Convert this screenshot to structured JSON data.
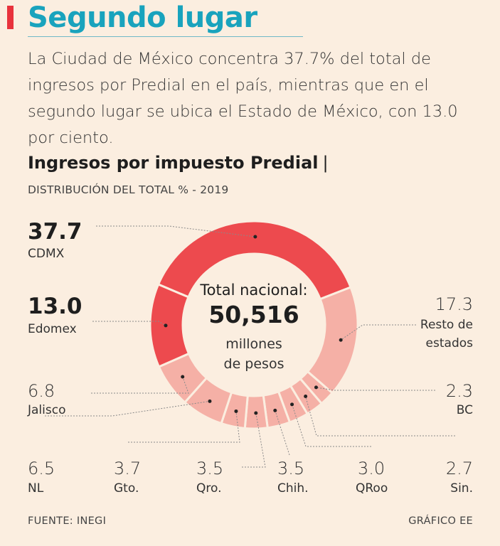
{
  "header": {
    "title": "Segundo lugar",
    "summary": "La Ciudad de México concentra 37.7% del total de ingresos por Predial en el país, mientras que en el segundo lugar se ubica el Estado de México, con 13.0 por ciento."
  },
  "chart_data": {
    "type": "pie",
    "title": "Ingresos por impuesto Predial",
    "title_separator": "|",
    "subtitle": "DISTRIBUCIÓN DEL TOTAL % - 2019",
    "center": {
      "line1": "Total nacional:",
      "value": "50,516",
      "line2": "millones",
      "line3": "de pesos"
    },
    "slices": [
      {
        "label": "CDMX",
        "value": 37.7,
        "value_text": "37.7",
        "color": "#ed4a4e"
      },
      {
        "label": "Resto de estados",
        "value": 17.3,
        "value_text": "17.3",
        "label_line1": "Resto de",
        "label_line2": "estados",
        "color": "#f5b0a6"
      },
      {
        "label": "BC",
        "value": 2.3,
        "value_text": "2.3",
        "color": "#f5b0a6"
      },
      {
        "label": "Sin.",
        "value": 2.7,
        "value_text": "2.7",
        "color": "#f5b0a6"
      },
      {
        "label": "QRoo",
        "value": 3.0,
        "value_text": "3.0",
        "color": "#f5b0a6"
      },
      {
        "label": "Chih.",
        "value": 3.5,
        "value_text": "3.5",
        "color": "#f5b0a6"
      },
      {
        "label": "Qro.",
        "value": 3.5,
        "value_text": "3.5",
        "color": "#f5b0a6"
      },
      {
        "label": "Gto.",
        "value": 3.7,
        "value_text": "3.7",
        "color": "#f5b0a6"
      },
      {
        "label": "NL",
        "value": 6.5,
        "value_text": "6.5",
        "color": "#f5b0a6"
      },
      {
        "label": "Jalisco",
        "value": 6.8,
        "value_text": "6.8",
        "color": "#f5b0a6"
      },
      {
        "label": "Edomex",
        "value": 13.0,
        "value_text": "13.0",
        "color": "#ed4a4e"
      }
    ]
  },
  "footer": {
    "source": "FUENTE: INEGI",
    "credit": "GRÁFICO EE"
  }
}
